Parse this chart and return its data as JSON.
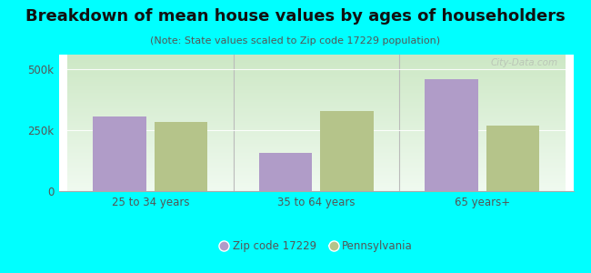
{
  "title": "Breakdown of mean house values by ages of householders",
  "subtitle": "(Note: State values scaled to Zip code 17229 population)",
  "categories": [
    "25 to 34 years",
    "35 to 64 years",
    "65 years+"
  ],
  "zip_values": [
    305000,
    155000,
    460000
  ],
  "pa_values": [
    285000,
    330000,
    270000
  ],
  "zip_color": "#b09cc8",
  "pa_color": "#b5c48a",
  "bg_color": "#00ffff",
  "ylim": [
    0,
    560000
  ],
  "yticks": [
    0,
    250000,
    500000
  ],
  "ytick_labels": [
    "0",
    "250k",
    "500k"
  ],
  "legend_zip": "Zip code 17229",
  "legend_pa": "Pennsylvania",
  "title_fontsize": 13,
  "subtitle_fontsize": 8,
  "watermark": "City-Data.com"
}
